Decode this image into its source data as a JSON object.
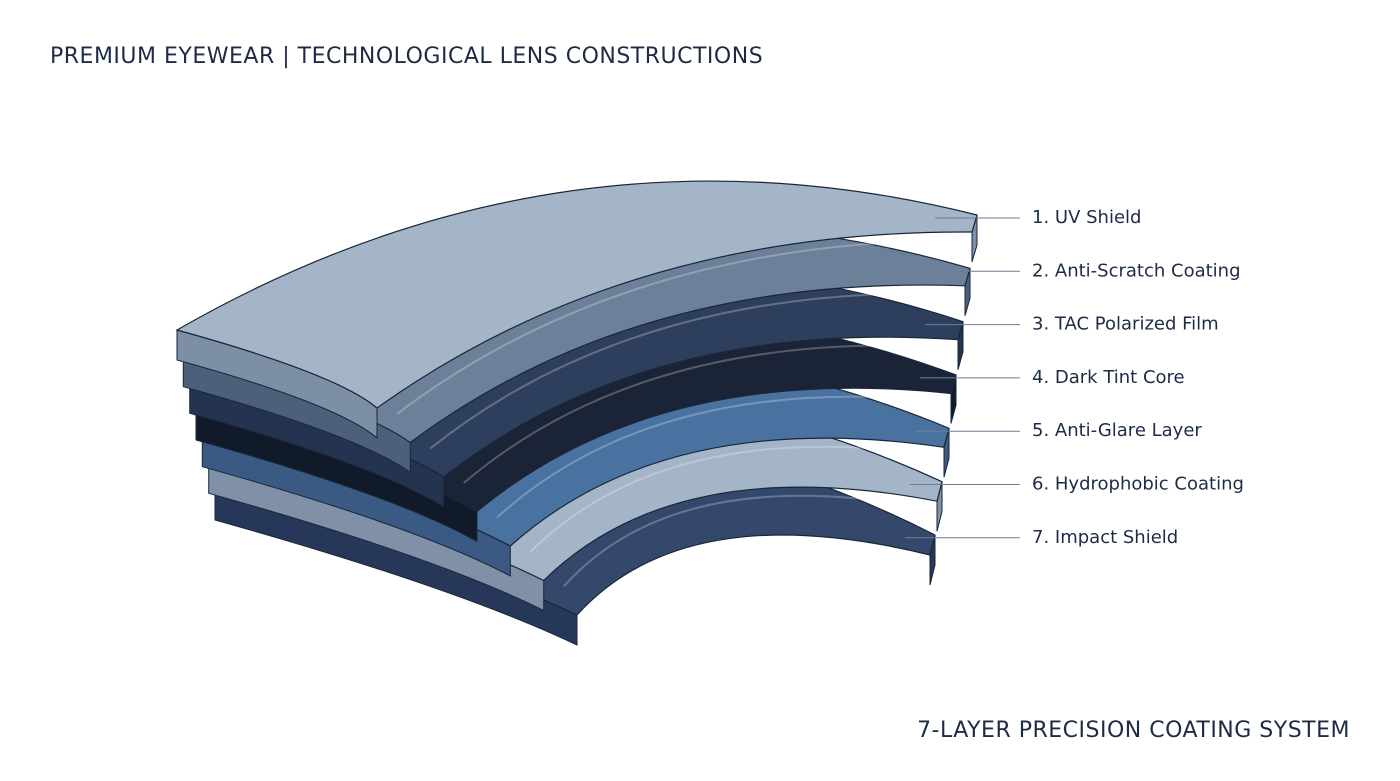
{
  "header": {
    "title": "PREMIUM EYEWEAR | TECHNOLOGICAL LENS CONSTRUCTIONS"
  },
  "layers": [
    "1. UV Shield",
    "2. Anti-Scratch Coating",
    "3. TAC Polarized Film",
    "4. Dark Tint Core",
    "5. Anti-Glare Layer",
    "6. Hydrophobic Coating",
    "7. Impact Shield"
  ],
  "footer": {
    "caption": "7-LAYER PRECISION COATING SYSTEM"
  }
}
